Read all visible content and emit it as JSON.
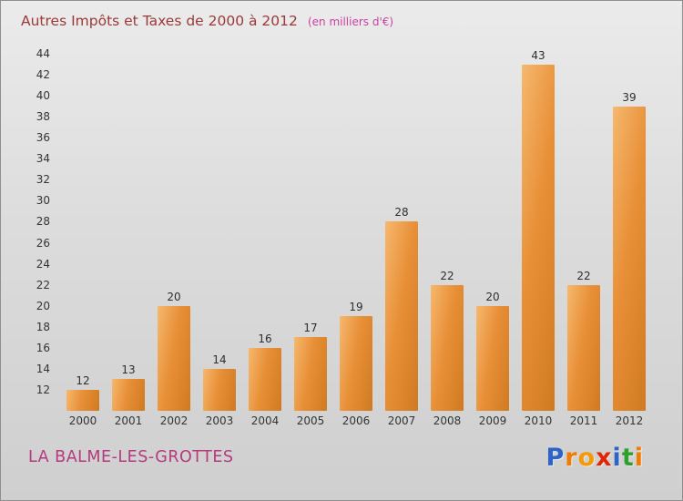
{
  "header": {
    "title": "Autres Impôts et Taxes de 2000 à 2012",
    "subtitle": "(en milliers d'€)"
  },
  "chart_data": {
    "type": "bar",
    "title": "Autres Impôts et Taxes de 2000 à 2012",
    "subtitle": "(en milliers d'€)",
    "categories": [
      "2000",
      "2001",
      "2002",
      "2003",
      "2004",
      "2005",
      "2006",
      "2007",
      "2008",
      "2009",
      "2010",
      "2011",
      "2012"
    ],
    "values": [
      12,
      13,
      20,
      14,
      16,
      17,
      19,
      28,
      22,
      20,
      43,
      22,
      39
    ],
    "xlabel": "",
    "ylabel": "",
    "ylim": [
      10,
      44
    ],
    "ytick_step": 2,
    "grid": false,
    "legend": "none",
    "bar_color_light": "#f6b86e",
    "bar_color_dark": "#cf7a22",
    "background_color": "#dcdcdc",
    "value_label_color": "#2e2e2e"
  },
  "footer": {
    "city": "LA BALME-LES-GROTTES",
    "logo_letters": [
      {
        "ch": "P",
        "color": "#2e64c8"
      },
      {
        "ch": "r",
        "color": "#f07d00"
      },
      {
        "ch": "o",
        "color": "#f59a00"
      },
      {
        "ch": "x",
        "color": "#e02800"
      },
      {
        "ch": "i",
        "color": "#2e64c8"
      },
      {
        "ch": "t",
        "color": "#2ea02e"
      },
      {
        "ch": "i",
        "color": "#f07d00"
      }
    ]
  }
}
